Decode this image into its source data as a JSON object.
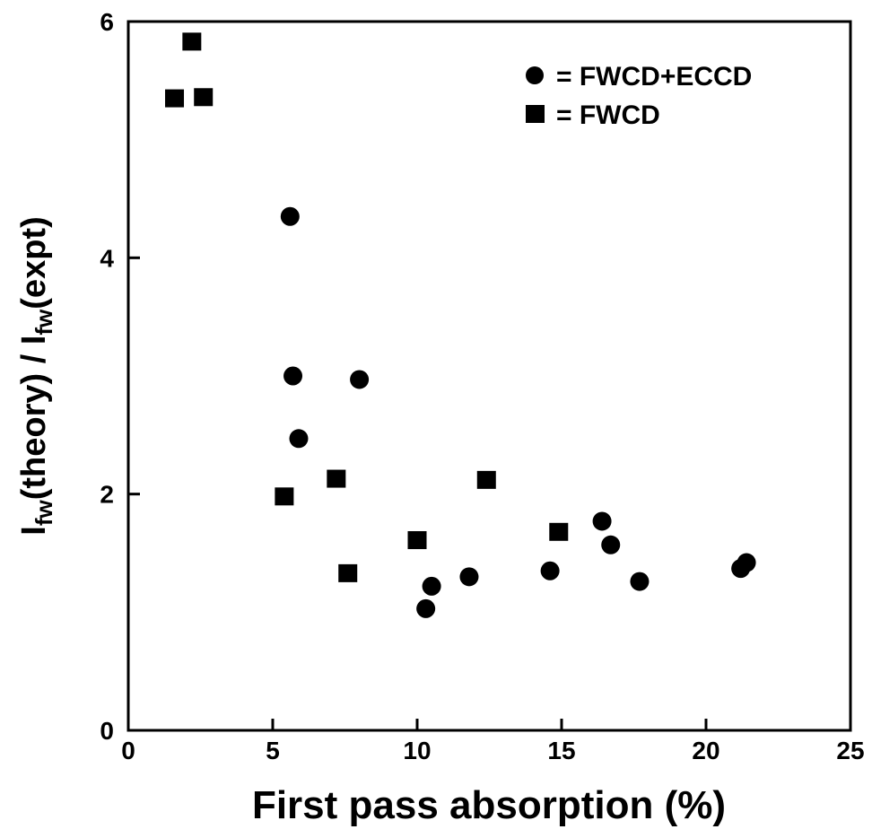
{
  "chart_data": {
    "type": "scatter",
    "xlabel": "First pass absorption (%)",
    "ylabel": {
      "parts": [
        {
          "text": "I",
          "sub": false
        },
        {
          "text": "fw",
          "sub": true
        },
        {
          "text": "(theory) / I",
          "sub": false
        },
        {
          "text": "fw",
          "sub": true
        },
        {
          "text": "(expt)",
          "sub": false
        }
      ]
    },
    "xlim": [
      0,
      25
    ],
    "ylim": [
      0,
      6
    ],
    "x_ticks": [
      0,
      5,
      10,
      15,
      20,
      25
    ],
    "y_ticks": [
      0,
      2,
      4,
      6
    ],
    "grid": false,
    "legend_position": "top-right",
    "series": [
      {
        "name": "= FWCD+ECCD",
        "marker": "circle",
        "color": "#000000",
        "points": [
          {
            "x": 5.6,
            "y": 4.35
          },
          {
            "x": 5.7,
            "y": 3.0
          },
          {
            "x": 5.9,
            "y": 2.47
          },
          {
            "x": 8.0,
            "y": 2.97
          },
          {
            "x": 10.3,
            "y": 1.03
          },
          {
            "x": 10.5,
            "y": 1.22
          },
          {
            "x": 11.8,
            "y": 1.3
          },
          {
            "x": 14.6,
            "y": 1.35
          },
          {
            "x": 16.4,
            "y": 1.77
          },
          {
            "x": 16.7,
            "y": 1.57
          },
          {
            "x": 17.7,
            "y": 1.26
          },
          {
            "x": 21.2,
            "y": 1.37
          },
          {
            "x": 21.4,
            "y": 1.42
          }
        ]
      },
      {
        "name": "= FWCD",
        "marker": "square",
        "color": "#000000",
        "points": [
          {
            "x": 2.2,
            "y": 5.83
          },
          {
            "x": 1.6,
            "y": 5.35
          },
          {
            "x": 2.6,
            "y": 5.36
          },
          {
            "x": 5.4,
            "y": 1.98
          },
          {
            "x": 7.2,
            "y": 2.13
          },
          {
            "x": 7.6,
            "y": 1.33
          },
          {
            "x": 10.0,
            "y": 1.61
          },
          {
            "x": 12.4,
            "y": 2.12
          },
          {
            "x": 14.9,
            "y": 1.68
          }
        ]
      }
    ]
  }
}
